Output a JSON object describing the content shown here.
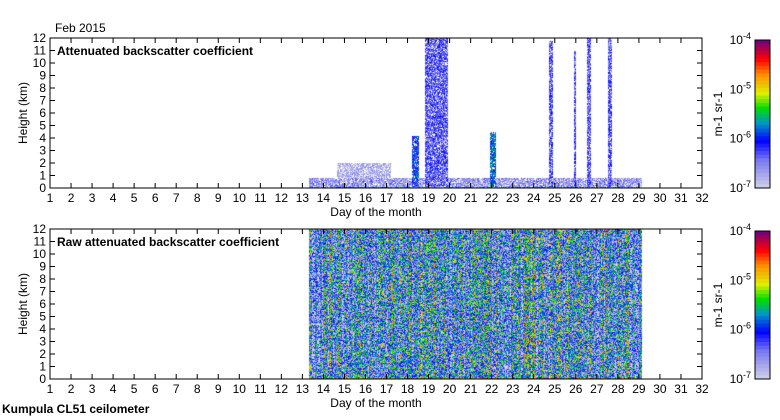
{
  "header": {
    "date_label": "Feb 2015"
  },
  "footer": {
    "instrument_label": "Kumpula CL51 ceilometer"
  },
  "chart_data": [
    {
      "type": "heatmap",
      "title": "Attenuated backscatter coefficient",
      "xlabel": "Day of the month",
      "ylabel": "Height (km)",
      "xlim": [
        1,
        32
      ],
      "ylim": [
        0,
        12
      ],
      "xticks": [
        1,
        2,
        3,
        4,
        5,
        6,
        7,
        8,
        9,
        10,
        11,
        12,
        13,
        14,
        15,
        16,
        17,
        18,
        19,
        20,
        21,
        22,
        23,
        24,
        25,
        26,
        27,
        28,
        29,
        30,
        31,
        32
      ],
      "yticks": [
        0,
        1,
        2,
        3,
        4,
        5,
        6,
        7,
        8,
        9,
        10,
        11,
        12
      ],
      "data_coverage_days": [
        13.3,
        29.1
      ],
      "features": [
        {
          "day_start": 13.3,
          "day_end": 29.1,
          "top_km": 0.8,
          "level": -6.6
        },
        {
          "day_start": 14.6,
          "day_end": 17.2,
          "top_km": 2.0,
          "level": -6.8
        },
        {
          "day_start": 18.2,
          "day_end": 18.5,
          "top_km": 4.2,
          "level": -6.0
        },
        {
          "day_start": 18.8,
          "day_end": 19.9,
          "top_km": 12,
          "level": -6.3
        },
        {
          "day_start": 21.9,
          "day_end": 22.2,
          "top_km": 4.5,
          "level": -5.8
        },
        {
          "day_start": 24.7,
          "day_end": 24.9,
          "top_km": 11.8,
          "level": -6.3
        },
        {
          "day_start": 25.9,
          "day_end": 26.0,
          "top_km": 11,
          "level": -6.3
        },
        {
          "day_start": 26.5,
          "day_end": 26.7,
          "top_km": 12,
          "level": -6.3
        },
        {
          "day_start": 27.5,
          "day_end": 27.7,
          "top_km": 12,
          "level": -6.3
        }
      ],
      "colorbar": {
        "label": "m-1 sr-1",
        "scale": "log",
        "range": [
          -7,
          -4
        ],
        "ticks": [
          "10-7",
          "10-6",
          "10-5",
          "10-4"
        ]
      }
    },
    {
      "type": "heatmap",
      "title": "Raw attenuated backscatter coefficient",
      "xlabel": "Day of the month",
      "ylabel": "Height (km)",
      "xlim": [
        1,
        32
      ],
      "ylim": [
        0,
        12
      ],
      "xticks": [
        1,
        2,
        3,
        4,
        5,
        6,
        7,
        8,
        9,
        10,
        11,
        12,
        13,
        14,
        15,
        16,
        17,
        18,
        19,
        20,
        21,
        22,
        23,
        24,
        25,
        26,
        27,
        28,
        29,
        30,
        31,
        32
      ],
      "yticks": [
        0,
        1,
        2,
        3,
        4,
        5,
        6,
        7,
        8,
        9,
        10,
        11,
        12
      ],
      "data_coverage_days": [
        13.3,
        29.1
      ],
      "features": [
        {
          "day_start": 13.3,
          "day_end": 29.1,
          "top_km": 12,
          "level": -6.0
        },
        {
          "day_start": 18.8,
          "day_end": 20.0,
          "top_km": 12,
          "level": -6.9
        }
      ],
      "colorbar": {
        "label": "m-1 sr-1",
        "scale": "log",
        "range": [
          -7,
          -4
        ],
        "ticks": [
          "10-7",
          "10-6",
          "10-5",
          "10-4"
        ]
      }
    }
  ]
}
